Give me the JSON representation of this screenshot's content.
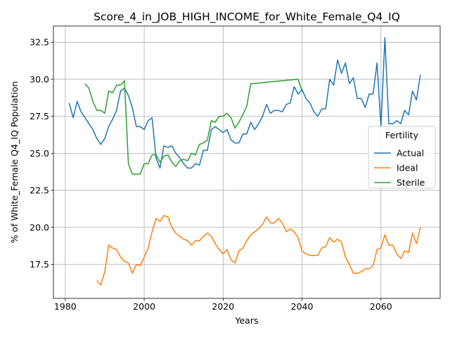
{
  "chart_data": {
    "type": "line",
    "title": "Score_4_in_JOB_HIGH_INCOME_for_White_Female_Q4_IQ",
    "xlabel": "Years",
    "ylabel": "% of White_Female Q4_IQ Population",
    "xlim": [
      1977,
      2075
    ],
    "ylim": [
      15.2,
      33.6
    ],
    "xticks": [
      1980,
      2000,
      2020,
      2040,
      2060
    ],
    "yticks": [
      17.5,
      20.0,
      22.5,
      25.0,
      27.5,
      30.0,
      32.5
    ],
    "xtick_labels": [
      "1980",
      "2000",
      "2020",
      "2040",
      "2060"
    ],
    "ytick_labels": [
      "17.5",
      "20.0",
      "22.5",
      "25.0",
      "27.5",
      "30.0",
      "32.5"
    ],
    "grid": true,
    "legend": {
      "title": "Fertility",
      "placement": "right"
    },
    "series": [
      {
        "name": "Actual",
        "color": "#1f77b4",
        "points": [
          [
            1981,
            28.4
          ],
          [
            1982,
            27.4
          ],
          [
            1983,
            28.5
          ],
          [
            1984,
            27.8
          ],
          [
            1985,
            27.4
          ],
          [
            1986,
            27.0
          ],
          [
            1987,
            26.6
          ],
          [
            1988,
            26.0
          ],
          [
            1989,
            25.6
          ],
          [
            1990,
            26.0
          ],
          [
            1991,
            26.8
          ],
          [
            1992,
            27.3
          ],
          [
            1993,
            27.9
          ],
          [
            1994,
            29.2
          ],
          [
            1995,
            29.4
          ],
          [
            1996,
            28.9
          ],
          [
            1997,
            28.1
          ],
          [
            1998,
            26.8
          ],
          [
            1999,
            26.8
          ],
          [
            2000,
            26.6
          ],
          [
            2001,
            27.2
          ],
          [
            2002,
            27.4
          ],
          [
            2003,
            24.7
          ],
          [
            2004,
            24.0
          ],
          [
            2005,
            25.5
          ],
          [
            2006,
            25.4
          ],
          [
            2007,
            25.5
          ],
          [
            2008,
            25.0
          ],
          [
            2009,
            24.7
          ],
          [
            2010,
            24.3
          ],
          [
            2011,
            24.0
          ],
          [
            2012,
            24.0
          ],
          [
            2013,
            24.3
          ],
          [
            2014,
            24.2
          ],
          [
            2015,
            25.2
          ],
          [
            2016,
            25.2
          ],
          [
            2017,
            26.6
          ],
          [
            2018,
            26.8
          ],
          [
            2019,
            26.6
          ],
          [
            2020,
            26.4
          ],
          [
            2021,
            26.6
          ],
          [
            2022,
            25.9
          ],
          [
            2023,
            25.7
          ],
          [
            2024,
            25.7
          ],
          [
            2025,
            26.3
          ],
          [
            2026,
            26.3
          ],
          [
            2027,
            27.1
          ],
          [
            2028,
            26.6
          ],
          [
            2029,
            27.0
          ],
          [
            2030,
            27.5
          ],
          [
            2031,
            28.3
          ],
          [
            2032,
            27.7
          ],
          [
            2033,
            27.9
          ],
          [
            2034,
            27.9
          ],
          [
            2035,
            27.8
          ],
          [
            2036,
            28.3
          ],
          [
            2037,
            28.4
          ],
          [
            2038,
            29.5
          ],
          [
            2039,
            29.0
          ],
          [
            2040,
            29.3
          ],
          [
            2041,
            28.7
          ],
          [
            2042,
            28.4
          ],
          [
            2043,
            27.8
          ],
          [
            2044,
            27.5
          ],
          [
            2045,
            28.0
          ],
          [
            2046,
            28.0
          ],
          [
            2047,
            30.0
          ],
          [
            2048,
            29.6
          ],
          [
            2049,
            31.3
          ],
          [
            2050,
            30.4
          ],
          [
            2051,
            31.1
          ],
          [
            2052,
            29.7
          ],
          [
            2053,
            30.1
          ],
          [
            2054,
            28.7
          ],
          [
            2055,
            28.7
          ],
          [
            2056,
            28.1
          ],
          [
            2057,
            29.0
          ],
          [
            2058,
            29.0
          ],
          [
            2059,
            31.1
          ],
          [
            2060,
            26.8
          ],
          [
            2061,
            32.8
          ],
          [
            2062,
            27.0
          ],
          [
            2063,
            27.0
          ],
          [
            2064,
            27.2
          ],
          [
            2065,
            27.0
          ],
          [
            2066,
            27.9
          ],
          [
            2067,
            27.6
          ],
          [
            2068,
            29.2
          ],
          [
            2069,
            28.6
          ],
          [
            2070,
            30.3
          ]
        ]
      },
      {
        "name": "Ideal",
        "color": "#ff7f0e",
        "points": [
          [
            1988,
            16.4
          ],
          [
            1989,
            16.1
          ],
          [
            1990,
            17.0
          ],
          [
            1991,
            18.8
          ],
          [
            1992,
            18.6
          ],
          [
            1993,
            18.5
          ],
          [
            1994,
            18.0
          ],
          [
            1995,
            17.7
          ],
          [
            1996,
            17.6
          ],
          [
            1997,
            16.9
          ],
          [
            1998,
            17.5
          ],
          [
            1999,
            17.4
          ],
          [
            2000,
            18.0
          ],
          [
            2001,
            18.6
          ],
          [
            2002,
            19.7
          ],
          [
            2003,
            20.6
          ],
          [
            2004,
            20.4
          ],
          [
            2005,
            20.8
          ],
          [
            2006,
            20.7
          ],
          [
            2007,
            20.0
          ],
          [
            2008,
            19.6
          ],
          [
            2009,
            19.4
          ],
          [
            2010,
            19.2
          ],
          [
            2011,
            19.1
          ],
          [
            2012,
            18.8
          ],
          [
            2013,
            19.1
          ],
          [
            2014,
            19.1
          ],
          [
            2015,
            19.4
          ],
          [
            2016,
            19.6
          ],
          [
            2017,
            19.4
          ],
          [
            2018,
            18.9
          ],
          [
            2019,
            18.5
          ],
          [
            2020,
            18.2
          ],
          [
            2021,
            18.5
          ],
          [
            2022,
            17.8
          ],
          [
            2023,
            17.6
          ],
          [
            2024,
            18.4
          ],
          [
            2025,
            18.6
          ],
          [
            2026,
            19.1
          ],
          [
            2027,
            19.5
          ],
          [
            2028,
            19.7
          ],
          [
            2029,
            19.9
          ],
          [
            2030,
            20.2
          ],
          [
            2031,
            20.7
          ],
          [
            2032,
            20.3
          ],
          [
            2033,
            20.3
          ],
          [
            2034,
            20.6
          ],
          [
            2035,
            20.3
          ],
          [
            2036,
            19.7
          ],
          [
            2037,
            19.9
          ],
          [
            2038,
            19.7
          ],
          [
            2039,
            19.3
          ],
          [
            2040,
            18.4
          ],
          [
            2041,
            18.2
          ],
          [
            2042,
            18.1
          ],
          [
            2043,
            18.1
          ],
          [
            2044,
            18.1
          ],
          [
            2045,
            18.6
          ],
          [
            2046,
            18.7
          ],
          [
            2047,
            19.3
          ],
          [
            2048,
            19.0
          ],
          [
            2049,
            19.2
          ],
          [
            2050,
            19.0
          ],
          [
            2051,
            18.0
          ],
          [
            2052,
            17.5
          ],
          [
            2053,
            16.9
          ],
          [
            2054,
            16.9
          ],
          [
            2055,
            17.0
          ],
          [
            2056,
            17.2
          ],
          [
            2057,
            17.2
          ],
          [
            2058,
            17.4
          ],
          [
            2059,
            18.5
          ],
          [
            2060,
            18.6
          ],
          [
            2061,
            19.5
          ],
          [
            2062,
            18.8
          ],
          [
            2063,
            18.8
          ],
          [
            2064,
            18.2
          ],
          [
            2065,
            17.9
          ],
          [
            2066,
            18.4
          ],
          [
            2067,
            18.3
          ],
          [
            2068,
            19.6
          ],
          [
            2069,
            18.9
          ],
          [
            2070,
            20.0
          ]
        ]
      },
      {
        "name": "Sterile",
        "color": "#2ca02c",
        "points": [
          [
            1985,
            29.7
          ],
          [
            1986,
            29.4
          ],
          [
            1987,
            28.5
          ],
          [
            1988,
            27.9
          ],
          [
            1989,
            27.9
          ],
          [
            1990,
            27.7
          ],
          [
            1991,
            29.2
          ],
          [
            1992,
            29.1
          ],
          [
            1993,
            29.6
          ],
          [
            1994,
            29.6
          ],
          [
            1995,
            29.9
          ],
          [
            1996,
            24.3
          ],
          [
            1997,
            23.6
          ],
          [
            1998,
            23.6
          ],
          [
            1999,
            23.6
          ],
          [
            2000,
            24.3
          ],
          [
            2001,
            24.3
          ],
          [
            2002,
            24.9
          ],
          [
            2003,
            24.9
          ],
          [
            2004,
            24.4
          ],
          [
            2005,
            24.8
          ],
          [
            2006,
            24.9
          ],
          [
            2007,
            24.4
          ],
          [
            2008,
            24.1
          ],
          [
            2009,
            24.5
          ],
          [
            2010,
            24.6
          ],
          [
            2011,
            24.5
          ],
          [
            2012,
            25.0
          ],
          [
            2013,
            24.9
          ],
          [
            2014,
            25.6
          ],
          [
            2015,
            25.7
          ],
          [
            2016,
            25.9
          ],
          [
            2017,
            27.2
          ],
          [
            2018,
            27.1
          ],
          [
            2019,
            27.5
          ],
          [
            2020,
            27.5
          ],
          [
            2021,
            27.7
          ],
          [
            2022,
            27.4
          ],
          [
            2023,
            26.7
          ],
          [
            2024,
            27.1
          ],
          [
            2025,
            27.6
          ],
          [
            2026,
            28.2
          ],
          [
            2027,
            29.7
          ],
          [
            2039,
            30.0
          ],
          [
            2040,
            29.2
          ]
        ]
      }
    ]
  }
}
